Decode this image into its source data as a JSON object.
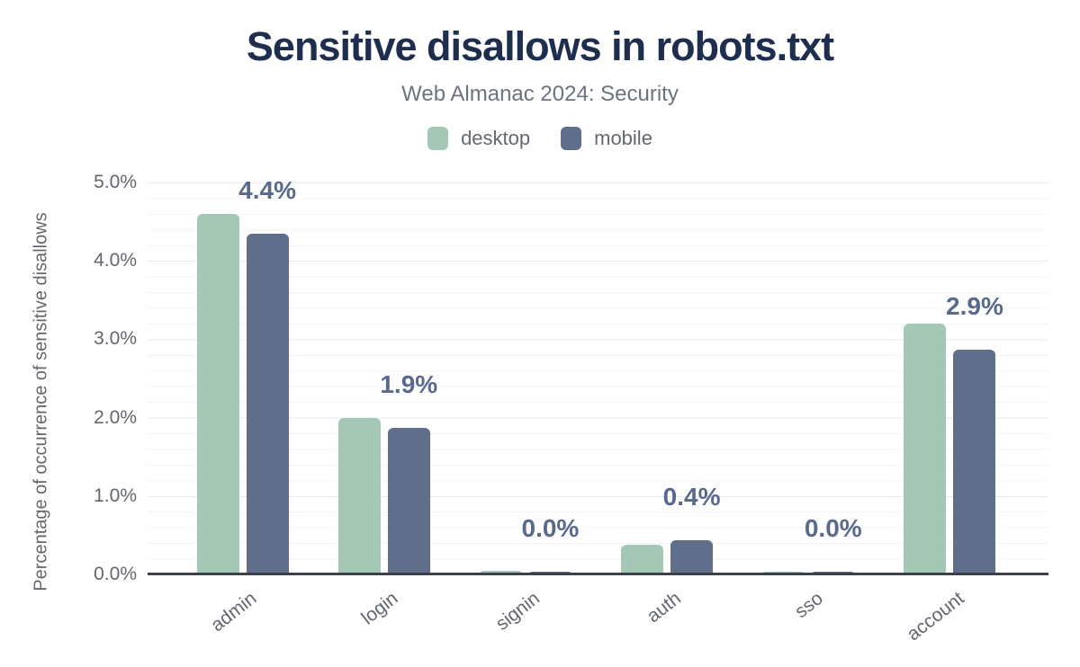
{
  "header": {
    "title": "Sensitive disallows in robots.txt",
    "subtitle": "Web Almanac 2024: Security"
  },
  "legend": {
    "items": [
      {
        "label": "desktop",
        "color": "#a5c8b6"
      },
      {
        "label": "mobile",
        "color": "#5f6e8b"
      }
    ]
  },
  "axes": {
    "y_title": "Percentage of occurrence of sensitive disallows",
    "y_ticks": [
      "5.0%",
      "4.0%",
      "3.0%",
      "2.0%",
      "1.0%",
      "0.0%"
    ],
    "y_max_percent": 5.0
  },
  "colors": {
    "title_text": "#1e2e4f",
    "subtitle_text": "#6d737e",
    "axis_text": "#62666d",
    "annotation_text": "#586a8d",
    "axis_line": "#3c4149",
    "desktop_bar": "#a5c8b6",
    "mobile_bar": "#5f6e8b"
  },
  "chart_data": {
    "type": "bar",
    "title": "Sensitive disallows in robots.txt",
    "subtitle": "Web Almanac 2024: Security",
    "categories": [
      "admin",
      "login",
      "signin",
      "auth",
      "sso",
      "account"
    ],
    "series": [
      {
        "name": "desktop",
        "color": "#a5c8b6",
        "values": [
          4.6,
          2.0,
          0.05,
          0.38,
          0.03,
          3.2
        ]
      },
      {
        "name": "mobile",
        "color": "#5f6e8b",
        "values": [
          4.35,
          1.87,
          0.03,
          0.44,
          0.03,
          2.87
        ]
      }
    ],
    "annotations": [
      "4.4%",
      "1.9%",
      "0.0%",
      "0.4%",
      "0.0%",
      "2.9%"
    ],
    "annotation_series": "mobile",
    "xlabel": "",
    "ylabel": "Percentage of occurrence of sensitive disallows",
    "ylim": [
      0,
      5
    ],
    "y_tick_step": 1.0,
    "grid": "horizontal, minor every 0.2%, major every 1.0%",
    "legend_position": "top center"
  }
}
